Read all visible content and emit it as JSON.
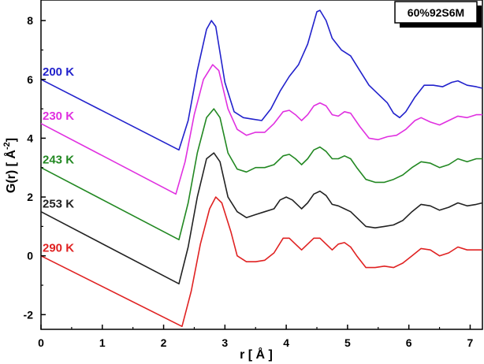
{
  "chart_data": {
    "type": "line",
    "title": "",
    "annotation": "60%92S6M",
    "xlabel_main": "r [ Å ]",
    "ylabel_main": "G(r) [ Å",
    "ylabel_sup": "-2",
    "ylabel_close": "]",
    "xlim": [
      0,
      7.2
    ],
    "ylim": [
      -2.5,
      8.7
    ],
    "xticks": [
      0,
      1,
      2,
      3,
      4,
      5,
      6,
      7
    ],
    "yticks": [
      -2,
      0,
      2,
      4,
      6,
      8
    ],
    "xtick_labels": [
      "0",
      "1",
      "2",
      "3",
      "4",
      "5",
      "6",
      "7"
    ],
    "ytick_labels": [
      "-2",
      "0",
      "2",
      "4",
      "6",
      "8"
    ],
    "grid": false,
    "series": [
      {
        "name": "200 K",
        "color": "#2222cc",
        "points": [
          [
            0,
            6.0
          ],
          [
            2.25,
            3.6
          ],
          [
            2.4,
            4.6
          ],
          [
            2.55,
            6.3
          ],
          [
            2.7,
            7.7
          ],
          [
            2.78,
            8.0
          ],
          [
            2.85,
            7.8
          ],
          [
            3.0,
            5.9
          ],
          [
            3.15,
            4.9
          ],
          [
            3.3,
            4.7
          ],
          [
            3.45,
            4.65
          ],
          [
            3.6,
            4.6
          ],
          [
            3.75,
            5.0
          ],
          [
            3.9,
            5.6
          ],
          [
            4.05,
            6.1
          ],
          [
            4.2,
            6.5
          ],
          [
            4.35,
            7.2
          ],
          [
            4.5,
            8.3
          ],
          [
            4.55,
            8.35
          ],
          [
            4.65,
            8.0
          ],
          [
            4.75,
            7.4
          ],
          [
            4.9,
            7.0
          ],
          [
            5.05,
            6.8
          ],
          [
            5.2,
            6.3
          ],
          [
            5.35,
            5.8
          ],
          [
            5.5,
            5.5
          ],
          [
            5.65,
            5.2
          ],
          [
            5.75,
            4.85
          ],
          [
            5.85,
            4.7
          ],
          [
            5.95,
            4.9
          ],
          [
            6.1,
            5.4
          ],
          [
            6.25,
            5.8
          ],
          [
            6.4,
            5.8
          ],
          [
            6.55,
            5.75
          ],
          [
            6.7,
            5.9
          ],
          [
            6.8,
            5.95
          ],
          [
            6.95,
            5.8
          ],
          [
            7.1,
            5.75
          ],
          [
            7.2,
            5.7
          ]
        ]
      },
      {
        "name": "230 K",
        "color": "#e030e0",
        "points": [
          [
            0,
            4.5
          ],
          [
            2.2,
            2.1
          ],
          [
            2.35,
            3.2
          ],
          [
            2.5,
            4.8
          ],
          [
            2.65,
            6.0
          ],
          [
            2.8,
            6.5
          ],
          [
            2.9,
            6.3
          ],
          [
            3.05,
            5.0
          ],
          [
            3.2,
            4.3
          ],
          [
            3.35,
            4.1
          ],
          [
            3.5,
            4.2
          ],
          [
            3.65,
            4.2
          ],
          [
            3.8,
            4.5
          ],
          [
            3.95,
            4.9
          ],
          [
            4.05,
            4.95
          ],
          [
            4.15,
            4.8
          ],
          [
            4.25,
            4.6
          ],
          [
            4.35,
            4.8
          ],
          [
            4.45,
            5.1
          ],
          [
            4.55,
            5.2
          ],
          [
            4.65,
            5.1
          ],
          [
            4.75,
            4.8
          ],
          [
            4.85,
            4.75
          ],
          [
            4.95,
            4.9
          ],
          [
            5.05,
            4.85
          ],
          [
            5.2,
            4.4
          ],
          [
            5.35,
            4.0
          ],
          [
            5.5,
            3.95
          ],
          [
            5.65,
            4.05
          ],
          [
            5.8,
            4.1
          ],
          [
            5.95,
            4.3
          ],
          [
            6.1,
            4.6
          ],
          [
            6.2,
            4.7
          ],
          [
            6.35,
            4.55
          ],
          [
            6.5,
            4.45
          ],
          [
            6.65,
            4.6
          ],
          [
            6.8,
            4.75
          ],
          [
            6.95,
            4.7
          ],
          [
            7.1,
            4.8
          ],
          [
            7.2,
            4.8
          ]
        ]
      },
      {
        "name": "243 K",
        "color": "#228822",
        "points": [
          [
            0,
            3.0
          ],
          [
            2.25,
            0.55
          ],
          [
            2.4,
            1.8
          ],
          [
            2.55,
            3.5
          ],
          [
            2.7,
            4.7
          ],
          [
            2.82,
            5.0
          ],
          [
            2.92,
            4.7
          ],
          [
            3.05,
            3.5
          ],
          [
            3.2,
            2.95
          ],
          [
            3.35,
            2.85
          ],
          [
            3.5,
            3.0
          ],
          [
            3.65,
            3.0
          ],
          [
            3.8,
            3.1
          ],
          [
            3.95,
            3.4
          ],
          [
            4.05,
            3.45
          ],
          [
            4.15,
            3.3
          ],
          [
            4.25,
            3.1
          ],
          [
            4.35,
            3.3
          ],
          [
            4.45,
            3.6
          ],
          [
            4.55,
            3.7
          ],
          [
            4.65,
            3.55
          ],
          [
            4.75,
            3.3
          ],
          [
            4.85,
            3.3
          ],
          [
            4.95,
            3.4
          ],
          [
            5.05,
            3.3
          ],
          [
            5.15,
            3.0
          ],
          [
            5.3,
            2.6
          ],
          [
            5.45,
            2.5
          ],
          [
            5.6,
            2.5
          ],
          [
            5.75,
            2.6
          ],
          [
            5.9,
            2.75
          ],
          [
            6.05,
            3.0
          ],
          [
            6.2,
            3.2
          ],
          [
            6.35,
            3.15
          ],
          [
            6.5,
            3.0
          ],
          [
            6.65,
            3.1
          ],
          [
            6.8,
            3.3
          ],
          [
            6.95,
            3.2
          ],
          [
            7.1,
            3.3
          ],
          [
            7.2,
            3.3
          ]
        ]
      },
      {
        "name": "253 K",
        "color": "#222222",
        "points": [
          [
            0,
            1.5
          ],
          [
            2.25,
            -0.95
          ],
          [
            2.4,
            0.3
          ],
          [
            2.55,
            2.0
          ],
          [
            2.7,
            3.3
          ],
          [
            2.82,
            3.5
          ],
          [
            2.92,
            3.2
          ],
          [
            3.05,
            2.0
          ],
          [
            3.2,
            1.5
          ],
          [
            3.35,
            1.3
          ],
          [
            3.5,
            1.4
          ],
          [
            3.65,
            1.5
          ],
          [
            3.8,
            1.6
          ],
          [
            3.9,
            1.9
          ],
          [
            4.0,
            2.0
          ],
          [
            4.1,
            1.9
          ],
          [
            4.25,
            1.6
          ],
          [
            4.35,
            1.8
          ],
          [
            4.45,
            2.1
          ],
          [
            4.55,
            2.2
          ],
          [
            4.65,
            2.05
          ],
          [
            4.75,
            1.75
          ],
          [
            4.85,
            1.7
          ],
          [
            4.95,
            1.6
          ],
          [
            5.05,
            1.5
          ],
          [
            5.15,
            1.3
          ],
          [
            5.3,
            1.0
          ],
          [
            5.45,
            0.95
          ],
          [
            5.6,
            1.0
          ],
          [
            5.75,
            1.05
          ],
          [
            5.9,
            1.2
          ],
          [
            6.05,
            1.5
          ],
          [
            6.2,
            1.75
          ],
          [
            6.35,
            1.7
          ],
          [
            6.5,
            1.55
          ],
          [
            6.65,
            1.65
          ],
          [
            6.8,
            1.8
          ],
          [
            6.95,
            1.7
          ],
          [
            7.1,
            1.75
          ],
          [
            7.2,
            1.8
          ]
        ]
      },
      {
        "name": "290 K",
        "color": "#e02222",
        "points": [
          [
            0,
            0.0
          ],
          [
            2.3,
            -2.4
          ],
          [
            2.45,
            -1.2
          ],
          [
            2.6,
            0.4
          ],
          [
            2.75,
            1.6
          ],
          [
            2.85,
            2.0
          ],
          [
            2.95,
            1.8
          ],
          [
            3.1,
            0.8
          ],
          [
            3.2,
            0.0
          ],
          [
            3.35,
            -0.2
          ],
          [
            3.5,
            -0.2
          ],
          [
            3.65,
            -0.15
          ],
          [
            3.8,
            0.1
          ],
          [
            3.95,
            0.6
          ],
          [
            4.05,
            0.6
          ],
          [
            4.15,
            0.4
          ],
          [
            4.25,
            0.2
          ],
          [
            4.35,
            0.4
          ],
          [
            4.45,
            0.6
          ],
          [
            4.55,
            0.6
          ],
          [
            4.65,
            0.4
          ],
          [
            4.75,
            0.2
          ],
          [
            4.85,
            0.4
          ],
          [
            4.95,
            0.45
          ],
          [
            5.05,
            0.3
          ],
          [
            5.15,
            0.0
          ],
          [
            5.3,
            -0.4
          ],
          [
            5.45,
            -0.4
          ],
          [
            5.6,
            -0.35
          ],
          [
            5.75,
            -0.4
          ],
          [
            5.9,
            -0.25
          ],
          [
            6.05,
            0.0
          ],
          [
            6.2,
            0.25
          ],
          [
            6.35,
            0.2
          ],
          [
            6.5,
            0.0
          ],
          [
            6.65,
            0.1
          ],
          [
            6.8,
            0.3
          ],
          [
            6.95,
            0.2
          ],
          [
            7.1,
            0.2
          ],
          [
            7.2,
            0.2
          ]
        ]
      }
    ]
  }
}
